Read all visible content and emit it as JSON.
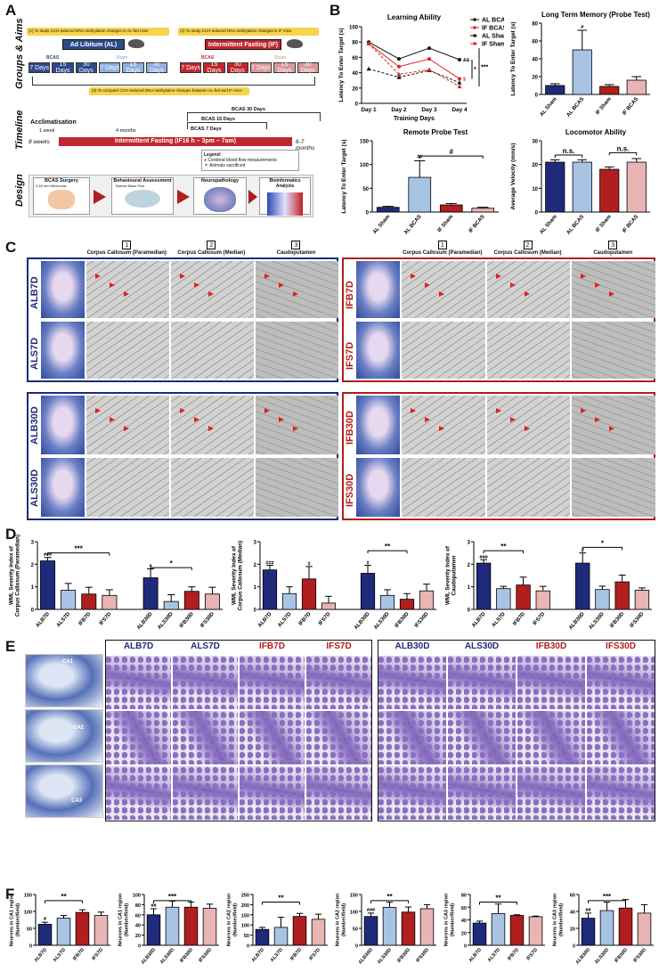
{
  "panel_labels": [
    "A",
    "B",
    "C",
    "D",
    "E",
    "F"
  ],
  "panelA": {
    "row_labels": [
      "Groups & Aims",
      "Timeline",
      "Design"
    ],
    "aim1": "(1) To study CCH-induced DNA methylation changes in AL-fed mice",
    "aim2": "(2) To study CCH-induced DNA methylation changes in IF mice",
    "aim3": "(3) To compare CCH-induced DNA methylation changes between AL-fed and IF mice",
    "al_title": "Ad Libitum (AL)",
    "if_title": "Intermittent Fasting (IF)",
    "bcas": "BCAS",
    "sham": "Sham",
    "days": [
      "7 Days",
      "15 Days",
      "30 Days",
      "7 Days",
      "15 Days",
      "30 Days"
    ],
    "timeline": {
      "acclim": "Acclimatisation",
      "week": "1 week",
      "months4": "4 months",
      "start": "8 weeks",
      "end": "6-7 months",
      "bar": "Intermittent Fasting (IF16 h – 3pm – 7am)",
      "b30": "BCAS 30 Days",
      "b15": "BCAS 15 Days",
      "b7": "BCAS 7 Days",
      "legend_title": "Legend:",
      "legend1": "Cerebral blood flow measurements",
      "legend2": "Animals sacrificed"
    },
    "design": [
      "BCAS Surgery",
      "Behavioural Assessment",
      "Neuropathology",
      "Bioinformatics Analysis"
    ],
    "design_sub": [
      "0.18 mm Microcoils",
      "Barnes Maze Test"
    ]
  },
  "panelB": {
    "chart_data": [
      {
        "type": "line",
        "title": "Learning Ability",
        "xlabel": "Training Days",
        "ylabel": "Latency To Enter Target (s)",
        "categories": [
          "Day 1",
          "Day 2",
          "Day 3",
          "Day 4"
        ],
        "ylim": [
          0,
          100
        ],
        "yticks": [
          0,
          20,
          40,
          60,
          80,
          100
        ],
        "series": [
          {
            "name": "AL BCAS",
            "values": [
              80,
              58,
              72,
              57
            ],
            "color": "#111111",
            "style": "solid"
          },
          {
            "name": "IF BCAS",
            "values": [
              78,
              48,
              58,
              32
            ],
            "color": "#d62728",
            "style": "solid"
          },
          {
            "name": "AL Sham",
            "values": [
              45,
              34,
              43,
              27
            ],
            "color": "#111111",
            "style": "dashed"
          },
          {
            "name": "IF Sham",
            "values": [
              78,
              38,
              44,
              22
            ],
            "color": "#d62728",
            "style": "dashed"
          }
        ],
        "annotations": [
          "&&",
          "$",
          "***",
          "*"
        ]
      },
      {
        "type": "bar",
        "title": "Long Term Memory (Probe Test)",
        "ylabel": "Latency To Enter Target (s)",
        "categories": [
          "AL Sham",
          "AL BCAS",
          "IF Sham",
          "IF BCAS"
        ],
        "values": [
          10,
          50,
          9,
          16
        ],
        "errors": [
          2,
          22,
          2,
          4
        ],
        "ylim": [
          0,
          80
        ],
        "yticks": [
          0,
          20,
          40,
          60,
          80
        ],
        "annotations": [
          "#"
        ]
      },
      {
        "type": "bar",
        "title": "Remote Probe Test",
        "ylabel": "Latency To Enter Target (s)",
        "categories": [
          "AL Sham",
          "AL BCAS",
          "IF Sham",
          "IF BCAS"
        ],
        "values": [
          10,
          73,
          15,
          8
        ],
        "errors": [
          2,
          35,
          3,
          2
        ],
        "ylim": [
          0,
          150
        ],
        "yticks": [
          0,
          50,
          100,
          150
        ],
        "annotations": [
          "##",
          "#"
        ]
      },
      {
        "type": "bar",
        "title": "Locomotor Ability",
        "ylabel": "Average Velocity (mm/s)",
        "categories": [
          "AL Sham",
          "AL BCAS",
          "IF Sham",
          "IF BCAS"
        ],
        "values": [
          21,
          21,
          18,
          21
        ],
        "errors": [
          1,
          1,
          1,
          1.5
        ],
        "ylim": [
          0,
          30
        ],
        "yticks": [
          0,
          10,
          20,
          30
        ],
        "annotations": [
          "n.s.",
          "n.s."
        ]
      }
    ]
  },
  "panelC": {
    "col_headers": [
      "Corpus Callosum (Paramedian)",
      "Corpus Callosum (Median)",
      "Caudoputamen"
    ],
    "col_nums": [
      "1",
      "2",
      "3"
    ],
    "left_rows": [
      "ALB7D",
      "ALS7D",
      "ALB30D",
      "ALS30D"
    ],
    "right_rows": [
      "IFB7D",
      "IFS7D",
      "IFB30D",
      "IFS30D"
    ]
  },
  "panelD": {
    "chart_data": [
      {
        "type": "bar",
        "ylabel": "WML Severity Index of Corpus Callosum (Paramedian)",
        "categories": [
          "ALB7D",
          "ALS7D",
          "IFB7D",
          "IFS7D",
          "ALB30D",
          "ALS30D",
          "IFB30D",
          "IFS30D"
        ],
        "values": [
          2.15,
          0.85,
          0.68,
          0.62,
          1.4,
          0.35,
          0.8,
          0.68
        ],
        "errors": [
          0.15,
          0.3,
          0.3,
          0.25,
          0.4,
          0.3,
          0.2,
          0.3
        ],
        "ylim": [
          0,
          3
        ],
        "yticks": [
          0,
          1,
          2,
          3
        ],
        "annotations": [
          "###",
          "***",
          "#",
          "*"
        ]
      },
      {
        "type": "bar",
        "ylabel": "WML Severity Index of Corpus Callosum (Median)",
        "categories": [
          "ALB7D",
          "ALS7D",
          "IFB7D",
          "IFS7D",
          "ALB30D",
          "ALS30D",
          "IFB30D",
          "IFS30D"
        ],
        "values": [
          1.75,
          0.7,
          1.35,
          0.28,
          1.6,
          0.62,
          0.45,
          0.82
        ],
        "errors": [
          0.2,
          0.3,
          0.55,
          0.3,
          0.35,
          0.25,
          0.25,
          0.3
        ],
        "ylim": [
          0,
          3
        ],
        "yticks": [
          0,
          1,
          2,
          3
        ],
        "annotations": [
          "###",
          "#",
          "#",
          "**"
        ]
      },
      {
        "type": "bar",
        "ylabel": "WML Severity Index of Caudoputamen",
        "categories": [
          "ALB7D",
          "ALS7D",
          "IFB7D",
          "IFS7D",
          "ALB30D",
          "ALS30D",
          "IFB30D",
          "IFS30D"
        ],
        "values": [
          2.05,
          0.92,
          1.08,
          0.82,
          2.05,
          0.88,
          1.22,
          0.85
        ],
        "errors": [
          0.15,
          0.1,
          0.35,
          0.2,
          0.45,
          0.15,
          0.3,
          0.1
        ],
        "ylim": [
          0,
          3
        ],
        "yticks": [
          0,
          1,
          2,
          3
        ],
        "annotations": [
          "###",
          "**",
          "#",
          "*"
        ]
      }
    ]
  },
  "panelE": {
    "headers": [
      "ALB7D",
      "ALS7D",
      "IFB7D",
      "IFS7D",
      "ALB30D",
      "ALS30D",
      "IFB30D",
      "IFS30D"
    ],
    "regions": [
      "CA1",
      "CA2",
      "CA3"
    ]
  },
  "panelF": {
    "chart_data": [
      {
        "type": "bar",
        "ylabel": "Neurons in CA1 region (Number/field)",
        "categories": [
          "ALB7D",
          "ALS7D",
          "IFB7D",
          "IFS7D"
        ],
        "values": [
          62,
          80,
          97,
          88
        ],
        "errors": [
          6,
          8,
          8,
          10
        ],
        "ylim": [
          0,
          150
        ],
        "yticks": [
          0,
          50,
          100,
          150
        ],
        "annotations": [
          "#",
          "**"
        ]
      },
      {
        "type": "bar",
        "ylabel": "Neurons in CA1 region (Number/field)",
        "categories": [
          "ALB30D",
          "ALS30D",
          "IFB30D",
          "IFS30D"
        ],
        "values": [
          60,
          75,
          75,
          73
        ],
        "errors": [
          12,
          12,
          10,
          8
        ],
        "ylim": [
          0,
          100
        ],
        "yticks": [
          0,
          20,
          40,
          60,
          80,
          100
        ],
        "annotations": [
          "##",
          "***"
        ]
      },
      {
        "type": "bar",
        "ylabel": "Neurons in CA2 region (Number/field)",
        "categories": [
          "ALB7D",
          "ALS7D",
          "IFB7D",
          "IFS7D"
        ],
        "values": [
          78,
          88,
          142,
          128
        ],
        "errors": [
          10,
          50,
          15,
          25
        ],
        "ylim": [
          0,
          250
        ],
        "yticks": [
          0,
          50,
          100,
          150,
          200,
          250
        ],
        "annotations": [
          "**"
        ]
      },
      {
        "type": "bar",
        "ylabel": "Neurons in CA2 region (Number/field)",
        "categories": [
          "ALB30D",
          "ALS30D",
          "IFB30D",
          "IFS30D"
        ],
        "values": [
          85,
          112,
          98,
          108
        ],
        "errors": [
          10,
          15,
          15,
          12
        ],
        "ylim": [
          0,
          150
        ],
        "yticks": [
          0,
          50,
          100,
          150
        ],
        "annotations": [
          "###",
          "**"
        ]
      },
      {
        "type": "bar",
        "ylabel": "Neurons in CA3 region (Number/field)",
        "categories": [
          "ALB7D",
          "ALS7D",
          "IFB7D",
          "IFS7D"
        ],
        "values": [
          35,
          50,
          47,
          45
        ],
        "errors": [
          3,
          15,
          1,
          1
        ],
        "ylim": [
          0,
          80
        ],
        "yticks": [
          0,
          20,
          40,
          60,
          80
        ],
        "annotations": [
          "**"
        ]
      },
      {
        "type": "bar",
        "ylabel": "Neurons in CA3 region (Number/field)",
        "categories": [
          "ALB30D",
          "ALS30D",
          "IFB30D",
          "IFS30D"
        ],
        "values": [
          32,
          41,
          44,
          38
        ],
        "errors": [
          6,
          10,
          10,
          10
        ],
        "ylim": [
          0,
          60
        ],
        "yticks": [
          0,
          20,
          40,
          60
        ],
        "annotations": [
          "##",
          "***"
        ]
      }
    ]
  },
  "colors": {
    "navy": "#1f2a7a",
    "lightblue": "#a8c4e5",
    "red": "#b01e1e",
    "pink": "#e8b4b4",
    "al_bg": "#2e4a8a",
    "if_bg": "#c0272d"
  }
}
